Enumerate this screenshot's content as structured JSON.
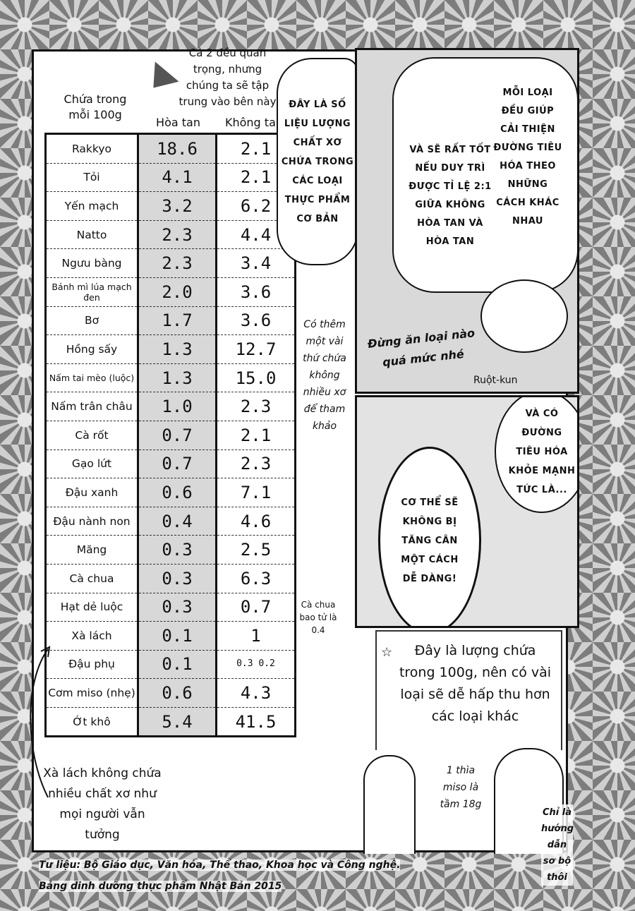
{
  "header": {
    "row_label": [
      "Chứa trong",
      "mỗi 100g"
    ],
    "col_soluble": "Hòa tan",
    "col_insoluble": "Không tan",
    "arrow_note": [
      "Cả 2 đều quan",
      "trọng, nhưng",
      "chúng ta sẽ tập",
      "trung vào bên này"
    ]
  },
  "table": [
    {
      "name": "Rakkyo",
      "soluble": "18.6",
      "insoluble": "2.1"
    },
    {
      "name": "Tỏi",
      "soluble": "4.1",
      "insoluble": "2.1"
    },
    {
      "name": "Yến mạch",
      "soluble": "3.2",
      "insoluble": "6.2"
    },
    {
      "name": "Natto",
      "soluble": "2.3",
      "insoluble": "4.4"
    },
    {
      "name": "Ngưu bàng",
      "soluble": "2.3",
      "insoluble": "3.4"
    },
    {
      "name": "Bánh mì lúa mạch đen",
      "soluble": "2.0",
      "insoluble": "3.6"
    },
    {
      "name": "Bơ",
      "soluble": "1.7",
      "insoluble": "3.6"
    },
    {
      "name": "Hồng sấy",
      "soluble": "1.3",
      "insoluble": "12.7"
    },
    {
      "name": "Nấm tai mèo (luộc)",
      "soluble": "1.3",
      "insoluble": "15.0"
    },
    {
      "name": "Nấm trân châu",
      "soluble": "1.0",
      "insoluble": "2.3"
    },
    {
      "name": "Cà rốt",
      "soluble": "0.7",
      "insoluble": "2.1"
    },
    {
      "name": "Gạo lứt",
      "soluble": "0.7",
      "insoluble": "2.3"
    },
    {
      "name": "Đậu xanh",
      "soluble": "0.6",
      "insoluble": "7.1"
    },
    {
      "name": "Đậu nành non",
      "soluble": "0.4",
      "insoluble": "4.6"
    },
    {
      "name": "Măng",
      "soluble": "0.3",
      "insoluble": "2.5"
    },
    {
      "name": "Cà chua",
      "soluble": "0.3",
      "insoluble": "6.3"
    },
    {
      "name": "Hạt dẻ luộc",
      "soluble": "0.3",
      "insoluble": "0.7"
    },
    {
      "name": "Xà lách",
      "soluble": "0.1",
      "insoluble": "1"
    },
    {
      "name": "Đậu phụ",
      "soluble": "0.1",
      "insoluble": "0.3 0.2"
    },
    {
      "name": "Cơm miso (nhẹ)",
      "soluble": "0.6",
      "insoluble": "4.3"
    },
    {
      "name": "Ớt khô",
      "soluble": "5.4",
      "insoluble": "41.5"
    }
  ],
  "bubbles": {
    "data_intro": "ĐÂY LÀ SỐ LIỆU LƯỢNG CHẤT XƠ CHỨA TRONG CÁC LOẠI THỰC PHẨM CƠ BẢN",
    "each_type": "MỖI LOẠI ĐỀU GIÚP CẢI THIỆN ĐƯỜNG TIÊU HÓA THEO NHỮNG CÁCH KHÁC NHAU",
    "ratio": "VÀ SẼ RẤT TỐT NẾU DUY TRÌ ĐƯỢC TỈ LỆ 2:1 GIỮA KHÔNG HÒA TAN VÀ HÒA TAN",
    "healthy": "VÀ CÓ ĐƯỜNG TIÊU HÓA KHỎE MẠNH TỨC LÀ...",
    "weight": "CƠ THỂ SẼ KHÔNG BỊ TĂNG CÂN MỘT CÁCH DỄ DÀNG!"
  },
  "notes": {
    "dont_overeat": "Đừng ăn loại nào quá mức nhé",
    "speaker": "Ruột-kun",
    "extra_items": "Có thêm một vài thứ chứa không nhiều xơ để tham khảo",
    "baby_tomato": "Cà chua bao tử là 0.4",
    "lettuce": "Xà lách không chứa nhiều chất xơ như mọi người vẫn tưởng",
    "per_100g": "Đây là lượng chứa trong 100g, nên có vài loại sẽ dễ hấp thu hơn các loại khác",
    "miso_spoon": "1 thìa miso là tầm 18g",
    "rough_guide": "Chỉ là hướng dẫn sơ bộ thôi"
  },
  "footer": {
    "source_line1": "Tư liệu: Bộ Giáo dục, Văn hóa, Thể thao, Khoa học và Công nghệ.",
    "source_line2": "Bảng dinh dưỡng thực phẩm Nhật Bản 2015"
  }
}
